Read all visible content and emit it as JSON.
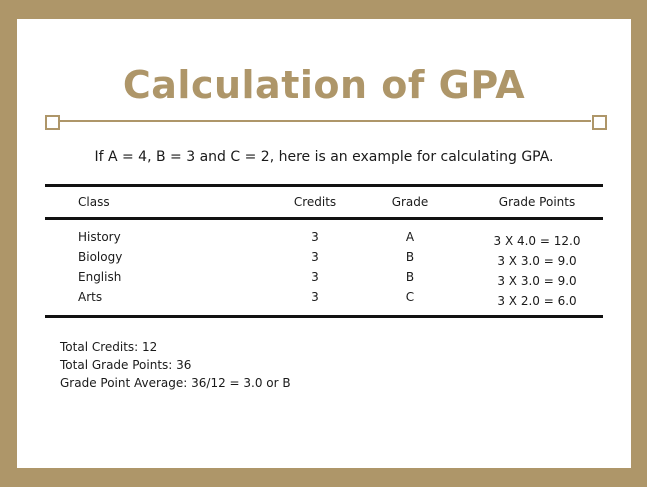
{
  "header": {
    "title": "Calculation of GPA",
    "subtitle": "If A = 4, B = 3 and C = 2, here is an example for calculating GPA."
  },
  "table": {
    "columns": [
      "Class",
      "Credits",
      "Grade",
      "Grade Points"
    ],
    "rows": [
      [
        "History",
        "3",
        "A",
        "3 X 4.0 = 12.0"
      ],
      [
        "Biology",
        "3",
        "B",
        "3 X 3.0 = 9.0"
      ],
      [
        "English",
        "3",
        "B",
        "3 X 3.0 = 9.0"
      ],
      [
        "Arts",
        "3",
        "C",
        "3 X 2.0 = 6.0"
      ]
    ]
  },
  "summary": [
    "Total Credits: 12",
    "Total Grade Points: 36",
    "Grade Point Average: 36/12 = 3.0 or B"
  ]
}
